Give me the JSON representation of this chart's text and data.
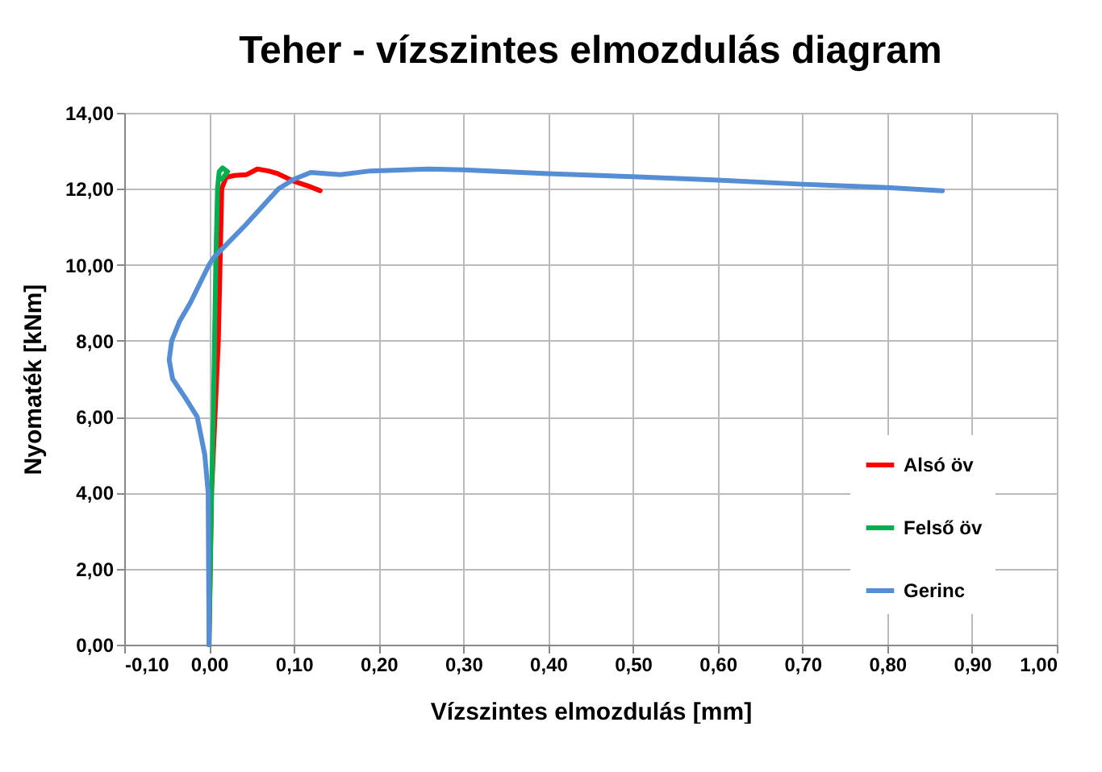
{
  "chart_data": {
    "type": "line",
    "title": "Teher - vízszintes elmozdulás diagram",
    "xlabel": "Vízszintes elmozdulás [mm]",
    "ylabel": "Nyomaték [kNm]",
    "xlim": [
      -0.1,
      1.0
    ],
    "ylim": [
      0,
      14
    ],
    "xticks": [
      {
        "value": -0.1,
        "label": "-0,10"
      },
      {
        "value": 0,
        "label": "0,00"
      },
      {
        "value": 0.1,
        "label": "0,10"
      },
      {
        "value": 0.2,
        "label": "0,20"
      },
      {
        "value": 0.3,
        "label": "0,30"
      },
      {
        "value": 0.4,
        "label": "0,40"
      },
      {
        "value": 0.5,
        "label": "0,50"
      },
      {
        "value": 0.6,
        "label": "0,60"
      },
      {
        "value": 0.7,
        "label": "0,70"
      },
      {
        "value": 0.8,
        "label": "0,80"
      },
      {
        "value": 0.9,
        "label": "0,90"
      },
      {
        "value": 1.0,
        "label": "1,00"
      }
    ],
    "yticks": [
      {
        "value": 0,
        "label": "0,00"
      },
      {
        "value": 2,
        "label": "2,00"
      },
      {
        "value": 4,
        "label": "4,00"
      },
      {
        "value": 6,
        "label": "6,00"
      },
      {
        "value": 8,
        "label": "8,00"
      },
      {
        "value": 10,
        "label": "10,00"
      },
      {
        "value": 12,
        "label": "12,00"
      },
      {
        "value": 14,
        "label": "14,00"
      }
    ],
    "grid": true,
    "legend": "right",
    "marker": "none",
    "line_style": "solid",
    "series": [
      {
        "name": "Alsó öv",
        "color": "#ff0000",
        "x": [
          0,
          0.003,
          0.007,
          0.011,
          0.014,
          0.015,
          0.02,
          0.03,
          0.044,
          0.057,
          0.07,
          0.081,
          0.1,
          0.12,
          0.131
        ],
        "values": [
          0,
          4,
          6,
          8,
          11,
          12,
          12.3,
          12.35,
          12.37,
          12.52,
          12.47,
          12.4,
          12.2,
          12.05,
          11.95
        ]
      },
      {
        "name": "Felső öv",
        "color": "#00b050",
        "x": [
          0,
          0.003,
          0.005,
          0.008,
          0.01,
          0.012,
          0.016,
          0.022,
          0.015
        ],
        "values": [
          0,
          4,
          6,
          10,
          12,
          12.45,
          12.55,
          12.45,
          12.25
        ]
      },
      {
        "name": "Gerinc",
        "color": "#558ed5",
        "x": [
          0,
          -0.001,
          -0.005,
          -0.014,
          -0.028,
          -0.043,
          -0.047,
          -0.044,
          -0.035,
          -0.022,
          0,
          0.006,
          0.041,
          0.082,
          0.1,
          0.12,
          0.155,
          0.19,
          0.26,
          0.3,
          0.4,
          0.5,
          0.6,
          0.7,
          0.8,
          0.865
        ],
        "values": [
          0,
          4,
          5,
          6,
          6.5,
          7,
          7.5,
          8,
          8.5,
          9,
          10,
          10.2,
          11,
          12,
          12.25,
          12.43,
          12.37,
          12.47,
          12.52,
          12.5,
          12.4,
          12.32,
          12.23,
          12.12,
          12.03,
          11.95
        ]
      }
    ]
  }
}
